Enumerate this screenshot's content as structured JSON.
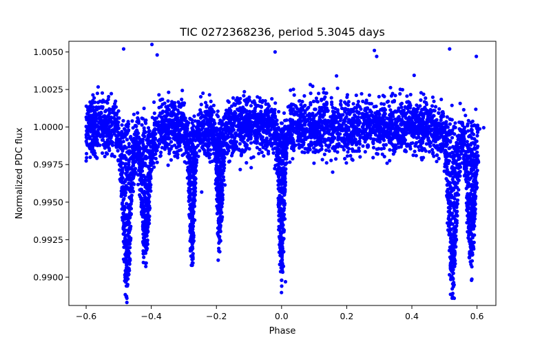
{
  "chart_data": {
    "type": "scatter",
    "title": "TIC 0272368236, period 5.3045 days",
    "xlabel": "Phase",
    "ylabel": "Normalized PDC flux",
    "xlim": [
      -0.653,
      0.658
    ],
    "ylim": [
      0.98812,
      1.00571
    ],
    "xticks": [
      -0.6,
      -0.4,
      -0.2,
      0.0,
      0.2,
      0.4,
      0.6
    ],
    "xtick_labels": [
      "−0.6",
      "−0.4",
      "−0.2",
      "0.0",
      "0.2",
      "0.4",
      "0.6"
    ],
    "yticks": [
      0.99,
      0.9925,
      0.995,
      0.9975,
      1.0,
      1.0025,
      1.005
    ],
    "ytick_labels": [
      "0.9900",
      "0.9925",
      "0.9950",
      "0.9975",
      "1.0000",
      "1.0025",
      "1.0050"
    ],
    "grid": false,
    "marker_color": "#0000ff",
    "series": [
      {
        "name": "PDC flux",
        "phase_range": [
          -0.6,
          0.6
        ],
        "baseline": 1.0,
        "baseline_scatter": 0.0009,
        "dips": [
          {
            "center": -0.475,
            "width": 0.012,
            "min_flux": 0.9887
          },
          {
            "center": -0.418,
            "width": 0.012,
            "min_flux": 0.9907
          },
          {
            "center": -0.275,
            "width": 0.008,
            "min_flux": 0.9908
          },
          {
            "center": -0.19,
            "width": 0.008,
            "min_flux": 0.9917
          },
          {
            "center": 0.0,
            "width": 0.008,
            "min_flux": 0.9898
          },
          {
            "center": 0.525,
            "width": 0.012,
            "min_flux": 0.9887
          },
          {
            "center": 0.582,
            "width": 0.012,
            "min_flux": 0.9907
          }
        ],
        "outliers": [
          {
            "phase": -0.485,
            "flux": 1.0052
          },
          {
            "phase": -0.398,
            "flux": 1.0055
          },
          {
            "phase": -0.382,
            "flux": 1.0048
          },
          {
            "phase": -0.02,
            "flux": 1.005
          },
          {
            "phase": 0.285,
            "flux": 1.0051
          },
          {
            "phase": 0.292,
            "flux": 1.0047
          },
          {
            "phase": 0.516,
            "flux": 1.0052
          },
          {
            "phase": 0.598,
            "flux": 1.0047
          },
          {
            "phase": 0.0,
            "flux": 0.9898
          },
          {
            "phase": 0.012,
            "flux": 0.9897
          },
          {
            "phase": -0.475,
            "flux": 0.9886
          },
          {
            "phase": 0.53,
            "flux": 0.9886
          }
        ]
      }
    ]
  }
}
